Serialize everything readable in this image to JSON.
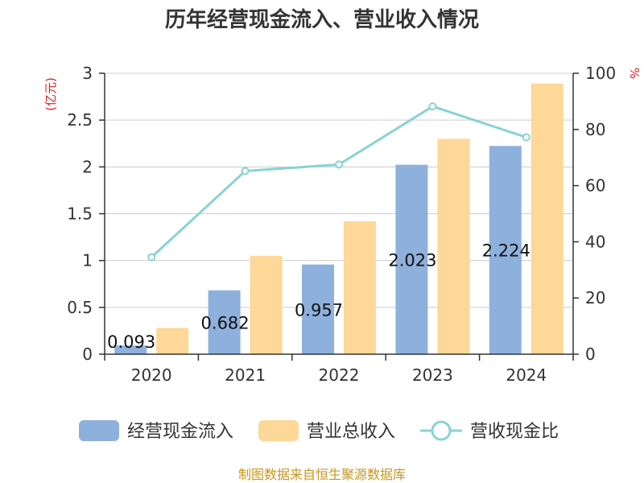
{
  "title": "历年经营现金流入、营业收入情况",
  "source": "制图数据来自恒生聚源数据库",
  "left_unit": "(亿元)",
  "right_unit": "%",
  "colors": {
    "cash_inflow": "#8eb0dc",
    "revenue": "#fed898",
    "ratio": "#89d3d3"
  },
  "chart_data": {
    "type": "bar",
    "categories": [
      "2020",
      "2021",
      "2022",
      "2023",
      "2024"
    ],
    "series": [
      {
        "name": "经营现金流入",
        "values": [
          0.093,
          0.682,
          0.957,
          2.023,
          2.224
        ],
        "axis": "left",
        "labels": [
          "0.093",
          "0.682",
          "0.957",
          "2.023",
          "2.224"
        ]
      },
      {
        "name": "营业总收入",
        "values": [
          0.28,
          1.05,
          1.42,
          2.3,
          2.89
        ],
        "axis": "left"
      },
      {
        "name": "营收现金比",
        "type": "line",
        "values": [
          34.5,
          65.2,
          67.5,
          88.2,
          77.2
        ],
        "axis": "right"
      }
    ],
    "yleft": {
      "ylim": [
        0,
        3
      ],
      "ticks": [
        "0",
        "0.5",
        "1",
        "1.5",
        "2",
        "2.5",
        "3"
      ]
    },
    "yright": {
      "ylim": [
        0,
        100
      ],
      "ticks": [
        "0",
        "20",
        "40",
        "60",
        "80",
        "100"
      ]
    },
    "grid": true,
    "legend_position": "bottom"
  }
}
